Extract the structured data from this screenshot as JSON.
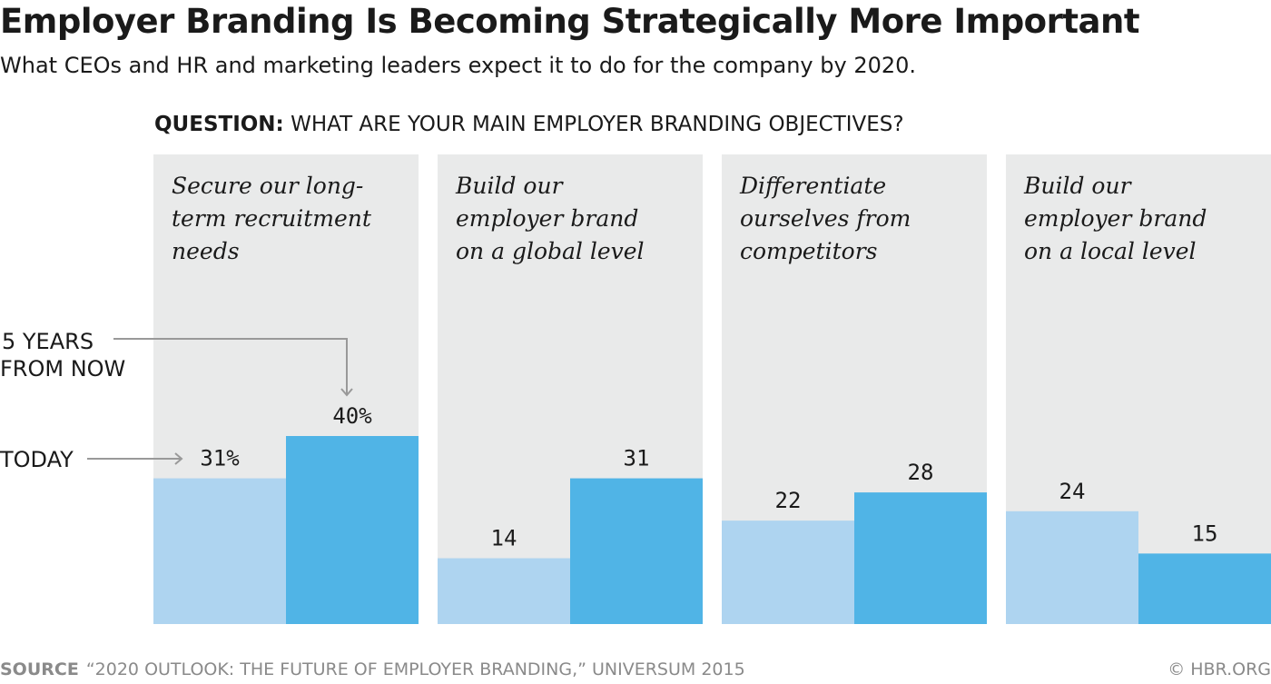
{
  "chart_data": {
    "type": "bar",
    "title": "Employer Branding Is Becoming Strategically More Important",
    "subtitle": "What CEOs and HR and marketing leaders expect it to do for the company by 2020.",
    "question_label": "QUESTION:",
    "question": "WHAT ARE YOUR MAIN EMPLOYER BRANDING OBJECTIVES?",
    "categories": [
      [
        "Secure our long-",
        "term recruitment",
        "needs"
      ],
      [
        "Build our",
        "employer brand",
        "on a global level"
      ],
      [
        "Differentiate",
        "ourselves from",
        "competitors"
      ],
      [
        "Build our",
        "employer brand",
        "on a local level"
      ]
    ],
    "series": [
      {
        "name": "TODAY",
        "values": [
          31,
          14,
          22,
          24
        ],
        "color": "#aed4f0",
        "labels": [
          "31%",
          "14",
          "22",
          "24"
        ]
      },
      {
        "name": "5 YEARS FROM NOW",
        "values": [
          40,
          31,
          28,
          15
        ],
        "color": "#50b4e6",
        "labels": [
          "40%",
          "31",
          "28",
          "15"
        ]
      }
    ],
    "annotations": {
      "today": "TODAY",
      "future_line1": "5 YEARS",
      "future_line2": "FROM NOW"
    },
    "unit": "%",
    "panel_color": "#e9eaea",
    "ylim": [
      0,
      100
    ],
    "grid": false
  },
  "footer": {
    "source_label": "SOURCE",
    "source": "“2020 OUTLOOK: THE FUTURE OF EMPLOYER BRANDING,” UNIVERSUM 2015",
    "copyright": "© HBR.ORG"
  }
}
